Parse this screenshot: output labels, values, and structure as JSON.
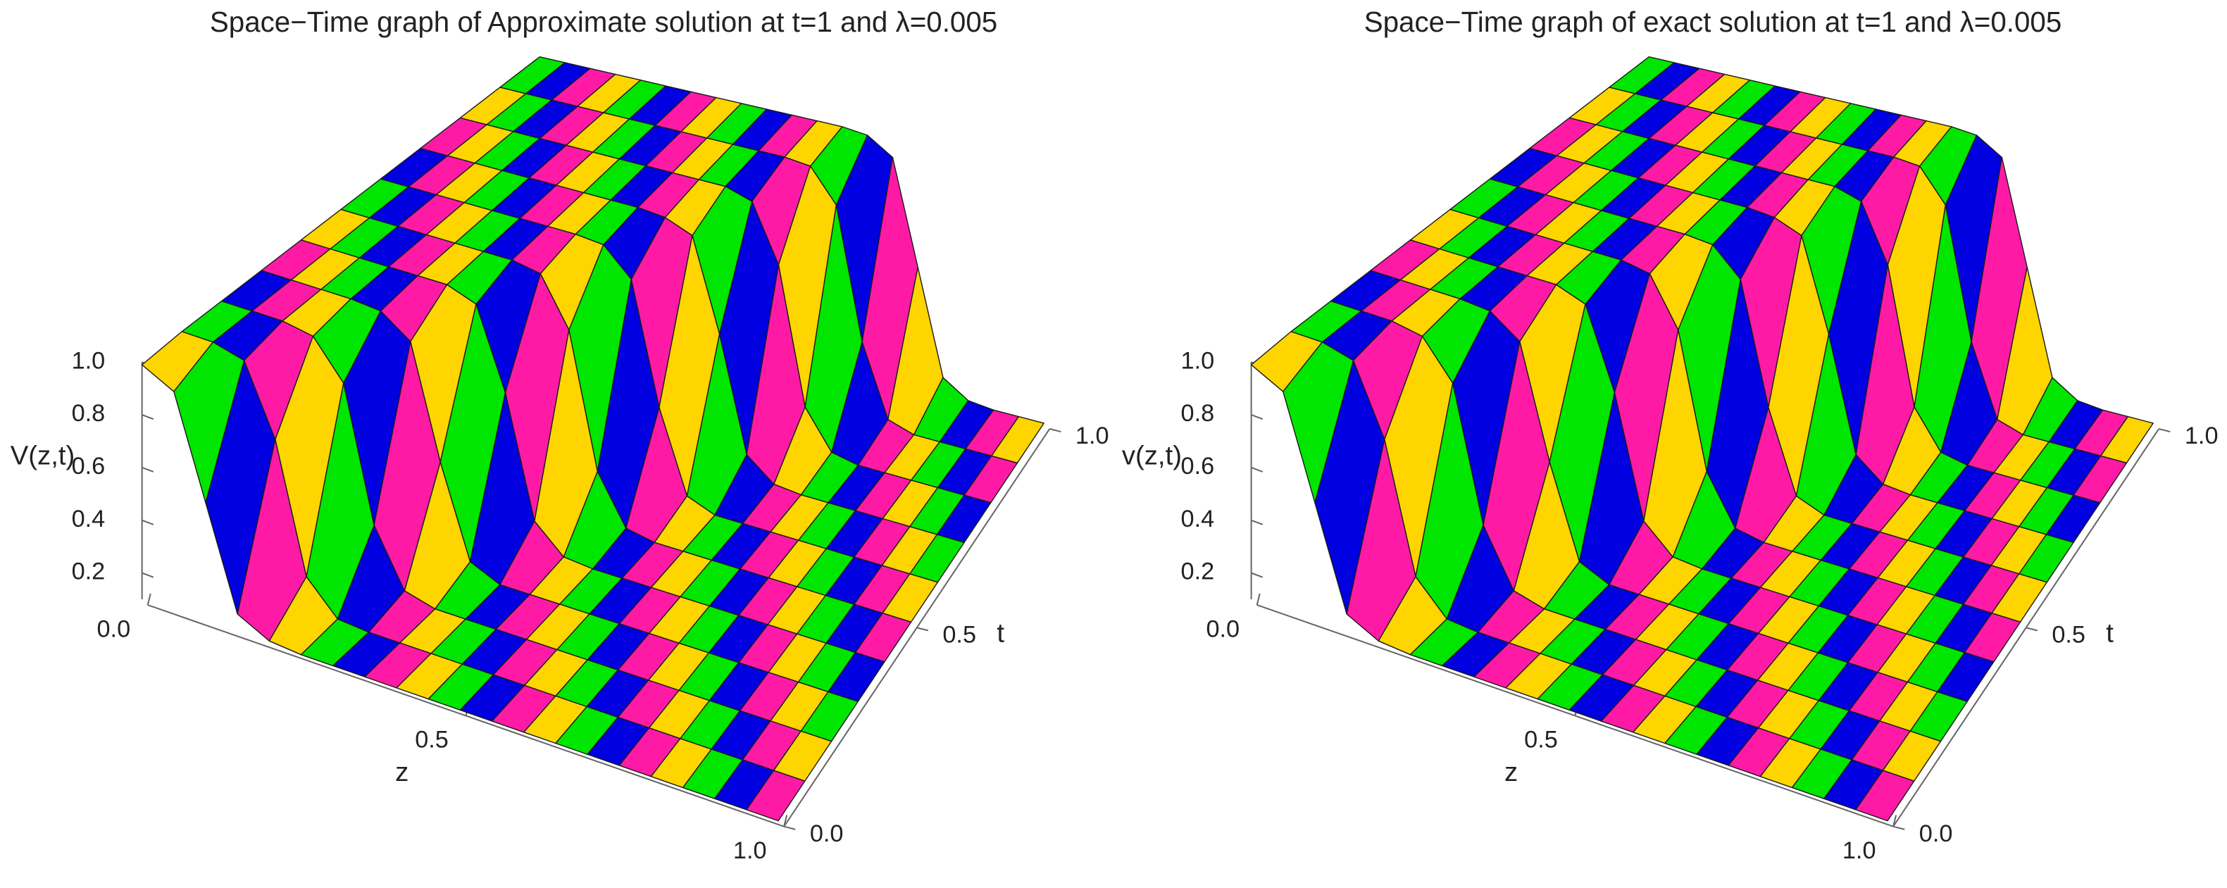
{
  "chart_data": [
    {
      "type": "surface",
      "title": "Space−Time graph of Approximate solution at t=1 and λ=0.005",
      "xlabel": "z",
      "ylabel": "t",
      "zlabel": "V(z,t)",
      "x": [
        0,
        0.05,
        0.1,
        0.15,
        0.2,
        0.25,
        0.3,
        0.35,
        0.4,
        0.45,
        0.5,
        0.55,
        0.6,
        0.65,
        0.7,
        0.75,
        0.8,
        0.85,
        0.9,
        0.95,
        1
      ],
      "y": [
        0,
        0.1,
        0.2,
        0.3,
        0.4,
        0.5,
        0.6,
        0.7,
        0.8,
        0.9,
        1
      ],
      "values": [
        [
          0.99,
          0.93,
          0.55,
          0.17,
          0.11,
          0.1,
          0.1,
          0.1,
          0.1,
          0.1,
          0.1,
          0.1,
          0.1,
          0.1,
          0.1,
          0.1,
          0.1,
          0.1,
          0.1,
          0.1,
          0.1
        ],
        [
          1,
          1,
          0.97,
          0.71,
          0.23,
          0.11,
          0.1,
          0.1,
          0.1,
          0.1,
          0.1,
          0.1,
          0.1,
          0.1,
          0.1,
          0.1,
          0.1,
          0.1,
          0.1,
          0.1,
          0.1
        ],
        [
          1,
          1,
          1,
          0.98,
          0.84,
          0.34,
          0.13,
          0.1,
          0.1,
          0.1,
          0.1,
          0.1,
          0.1,
          0.1,
          0.1,
          0.1,
          0.1,
          0.1,
          0.1,
          0.1,
          0.1
        ],
        [
          1,
          1,
          1,
          1,
          0.99,
          0.91,
          0.49,
          0.15,
          0.1,
          0.1,
          0.1,
          0.1,
          0.1,
          0.1,
          0.1,
          0.1,
          0.1,
          0.1,
          0.1,
          0.1,
          0.1
        ],
        [
          1,
          1,
          1,
          1,
          1,
          1,
          0.96,
          0.66,
          0.21,
          0.11,
          0.1,
          0.1,
          0.1,
          0.1,
          0.1,
          0.1,
          0.1,
          0.1,
          0.1,
          0.1,
          0.1
        ],
        [
          1,
          1,
          1,
          1,
          1,
          1,
          1,
          0.98,
          0.8,
          0.3,
          0.12,
          0.1,
          0.1,
          0.1,
          0.1,
          0.1,
          0.1,
          0.1,
          0.1,
          0.1,
          0.1
        ],
        [
          1,
          1,
          1,
          1,
          1,
          1,
          1,
          1,
          0.99,
          0.89,
          0.44,
          0.14,
          0.1,
          0.1,
          0.1,
          0.1,
          0.1,
          0.1,
          0.1,
          0.1,
          0.1
        ],
        [
          1,
          1,
          1,
          1,
          1,
          1,
          1,
          1,
          1,
          0.99,
          0.95,
          0.61,
          0.19,
          0.11,
          0.1,
          0.1,
          0.1,
          0.1,
          0.1,
          0.1,
          0.1
        ],
        [
          1,
          1,
          1,
          1,
          1,
          1,
          1,
          1,
          1,
          1,
          1,
          0.97,
          0.76,
          0.26,
          0.12,
          0.1,
          0.1,
          0.1,
          0.1,
          0.1,
          0.1
        ],
        [
          1,
          1,
          1,
          1,
          1,
          1,
          1,
          1,
          1,
          1,
          1,
          1,
          0.99,
          0.87,
          0.39,
          0.13,
          0.1,
          0.1,
          0.1,
          0.1,
          0.1
        ],
        [
          1,
          1,
          1,
          1,
          1,
          1,
          1,
          1,
          1,
          1,
          1,
          1,
          1,
          0.99,
          0.93,
          0.55,
          0.17,
          0.11,
          0.1,
          0.1,
          0.1
        ]
      ],
      "colors": [
        "#ffd500",
        "#00e600",
        "#0000e0",
        "#ff1aa6"
      ],
      "xlim": [
        0,
        1
      ],
      "ylim": [
        0,
        1
      ],
      "zlim": [
        0.1,
        1
      ],
      "xticks": [
        {
          "value": 0,
          "label": "0.0"
        },
        0.5,
        {
          "value": 1,
          "label": "1.0"
        }
      ],
      "yticks": [
        {
          "value": 0,
          "label": "0.0"
        },
        0.5,
        {
          "value": 1,
          "label": "1.0"
        }
      ],
      "zticks": [
        0.2,
        0.4,
        0.6,
        0.8,
        {
          "value": 1,
          "label": "1.0"
        }
      ]
    },
    {
      "type": "surface",
      "title": "Space−Time graph of exact solution at t=1 and λ=0.005",
      "xlabel": "z",
      "ylabel": "t",
      "zlabel": "v(z,t)",
      "x": [
        0,
        0.05,
        0.1,
        0.15,
        0.2,
        0.25,
        0.3,
        0.35,
        0.4,
        0.45,
        0.5,
        0.55,
        0.6,
        0.65,
        0.7,
        0.75,
        0.8,
        0.85,
        0.9,
        0.95,
        1
      ],
      "y": [
        0,
        0.1,
        0.2,
        0.3,
        0.4,
        0.5,
        0.6,
        0.7,
        0.8,
        0.9,
        1
      ],
      "values": [
        [
          0.99,
          0.93,
          0.55,
          0.17,
          0.11,
          0.1,
          0.1,
          0.1,
          0.1,
          0.1,
          0.1,
          0.1,
          0.1,
          0.1,
          0.1,
          0.1,
          0.1,
          0.1,
          0.1,
          0.1,
          0.1
        ],
        [
          1,
          1,
          0.97,
          0.71,
          0.23,
          0.11,
          0.1,
          0.1,
          0.1,
          0.1,
          0.1,
          0.1,
          0.1,
          0.1,
          0.1,
          0.1,
          0.1,
          0.1,
          0.1,
          0.1,
          0.1
        ],
        [
          1,
          1,
          1,
          0.98,
          0.84,
          0.34,
          0.13,
          0.1,
          0.1,
          0.1,
          0.1,
          0.1,
          0.1,
          0.1,
          0.1,
          0.1,
          0.1,
          0.1,
          0.1,
          0.1,
          0.1
        ],
        [
          1,
          1,
          1,
          1,
          0.99,
          0.91,
          0.49,
          0.15,
          0.1,
          0.1,
          0.1,
          0.1,
          0.1,
          0.1,
          0.1,
          0.1,
          0.1,
          0.1,
          0.1,
          0.1,
          0.1
        ],
        [
          1,
          1,
          1,
          1,
          1,
          1,
          0.96,
          0.66,
          0.21,
          0.11,
          0.1,
          0.1,
          0.1,
          0.1,
          0.1,
          0.1,
          0.1,
          0.1,
          0.1,
          0.1,
          0.1
        ],
        [
          1,
          1,
          1,
          1,
          1,
          1,
          1,
          0.98,
          0.8,
          0.3,
          0.12,
          0.1,
          0.1,
          0.1,
          0.1,
          0.1,
          0.1,
          0.1,
          0.1,
          0.1,
          0.1
        ],
        [
          1,
          1,
          1,
          1,
          1,
          1,
          1,
          1,
          0.99,
          0.89,
          0.44,
          0.14,
          0.1,
          0.1,
          0.1,
          0.1,
          0.1,
          0.1,
          0.1,
          0.1,
          0.1
        ],
        [
          1,
          1,
          1,
          1,
          1,
          1,
          1,
          1,
          1,
          0.99,
          0.95,
          0.61,
          0.19,
          0.11,
          0.1,
          0.1,
          0.1,
          0.1,
          0.1,
          0.1,
          0.1
        ],
        [
          1,
          1,
          1,
          1,
          1,
          1,
          1,
          1,
          1,
          1,
          1,
          0.97,
          0.76,
          0.26,
          0.12,
          0.1,
          0.1,
          0.1,
          0.1,
          0.1,
          0.1
        ],
        [
          1,
          1,
          1,
          1,
          1,
          1,
          1,
          1,
          1,
          1,
          1,
          1,
          0.99,
          0.87,
          0.39,
          0.13,
          0.1,
          0.1,
          0.1,
          0.1,
          0.1
        ],
        [
          1,
          1,
          1,
          1,
          1,
          1,
          1,
          1,
          1,
          1,
          1,
          1,
          1,
          0.99,
          0.93,
          0.55,
          0.17,
          0.11,
          0.1,
          0.1,
          0.1
        ]
      ],
      "colors": [
        "#ffd500",
        "#00e600",
        "#0000e0",
        "#ff1aa6"
      ],
      "xlim": [
        0,
        1
      ],
      "ylim": [
        0,
        1
      ],
      "zlim": [
        0.1,
        1
      ],
      "xticks": [
        {
          "value": 0,
          "label": "0.0"
        },
        0.5,
        {
          "value": 1,
          "label": "1.0"
        }
      ],
      "yticks": [
        {
          "value": 0,
          "label": "0.0"
        },
        0.5,
        {
          "value": 1,
          "label": "1.0"
        }
      ],
      "zticks": [
        0.2,
        0.4,
        0.6,
        0.8,
        {
          "value": 1,
          "label": "1.0"
        }
      ]
    }
  ]
}
